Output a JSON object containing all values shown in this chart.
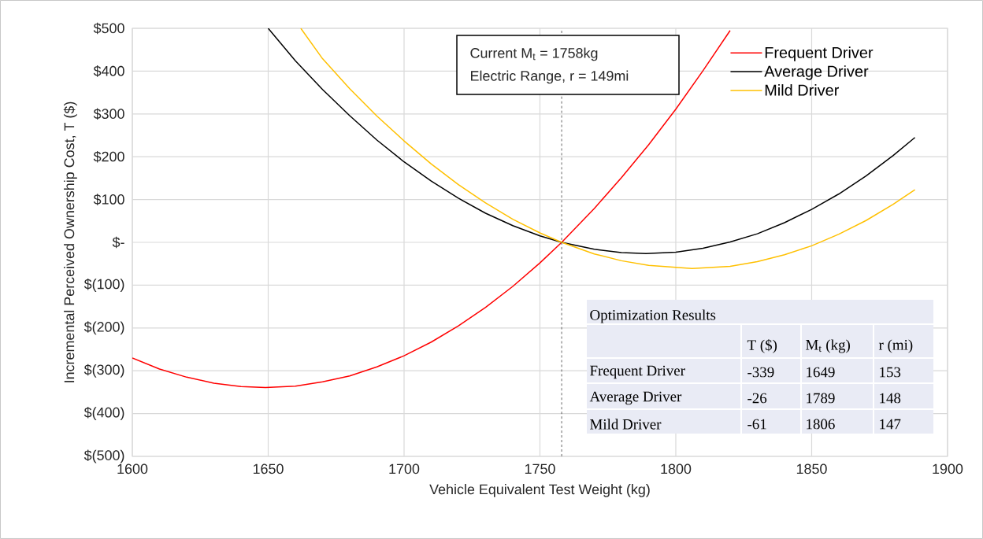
{
  "chart_data": {
    "type": "line",
    "xlabel": "Vehicle Equivalent Test Weight (kg)",
    "ylabel": "Incremental Perceived Ownership Cost, T ($)",
    "xlim": [
      1600,
      1900
    ],
    "xticks": [
      1600,
      1650,
      1700,
      1750,
      1800,
      1850,
      1900
    ],
    "ylim": [
      -500,
      500
    ],
    "yticks": [
      {
        "value": -500,
        "label": "$(500)"
      },
      {
        "value": -400,
        "label": "$(400)"
      },
      {
        "value": -300,
        "label": "$(300)"
      },
      {
        "value": -200,
        "label": "$(200)"
      },
      {
        "value": -100,
        "label": "$(100)"
      },
      {
        "value": 0,
        "label": "$-"
      },
      {
        "value": 100,
        "label": "$100"
      },
      {
        "value": 200,
        "label": "$200"
      },
      {
        "value": 300,
        "label": "$300"
      },
      {
        "value": 400,
        "label": "$400"
      },
      {
        "value": 500,
        "label": "$500"
      }
    ],
    "grid": true,
    "legend": "top right",
    "marker": "none",
    "line_style": "solid",
    "series": [
      {
        "name": "Frequent Driver",
        "color": "#ff0000",
        "x": [
          1600,
          1610,
          1620,
          1630,
          1640,
          1649,
          1660,
          1670,
          1680,
          1690,
          1700,
          1710,
          1720,
          1730,
          1740,
          1750,
          1758,
          1770,
          1780,
          1790,
          1800,
          1810,
          1820
        ],
        "values": [
          -270,
          -296,
          -315,
          -329,
          -337,
          -339,
          -336,
          -326,
          -312,
          -291,
          -265,
          -233,
          -195,
          -152,
          -103,
          -48,
          0,
          79,
          151,
          228,
          311,
          401,
          495
        ]
      },
      {
        "name": "Average Driver",
        "color": "#000000",
        "x": [
          1650,
          1660,
          1670,
          1680,
          1690,
          1700,
          1710,
          1720,
          1730,
          1740,
          1750,
          1758,
          1770,
          1780,
          1789,
          1800,
          1810,
          1820,
          1830,
          1840,
          1850,
          1860,
          1870,
          1880,
          1888
        ],
        "values": [
          500,
          424,
          357,
          296,
          239,
          188,
          143,
          103,
          68,
          39,
          15,
          0,
          -16,
          -24,
          -26,
          -23,
          -14,
          1,
          20,
          46,
          77,
          113,
          155,
          203,
          245
        ]
      },
      {
        "name": "Mild Driver",
        "color": "#ffc000",
        "x": [
          1662,
          1670,
          1680,
          1690,
          1700,
          1710,
          1720,
          1730,
          1740,
          1750,
          1758,
          1770,
          1780,
          1790,
          1806,
          1820,
          1830,
          1840,
          1850,
          1860,
          1870,
          1880,
          1888
        ],
        "values": [
          500,
          429,
          359,
          295,
          237,
          183,
          135,
          92,
          54,
          22,
          0,
          -27,
          -43,
          -54,
          -61,
          -56,
          -45,
          -29,
          -8,
          19,
          51,
          89,
          123
        ]
      }
    ],
    "ref_lines": [
      {
        "axis": "x",
        "value": 1758,
        "color": "#404040",
        "line_style": "dashed"
      }
    ],
    "annotations": [
      "Current M$_{t}$ = 1758kg",
      "Electric Range, r = 149mi",
      "Optimization Results",
      "T ($)",
      "M$_{t}$ (kg)",
      "r (mi)",
      "Frequent Driver",
      "-339",
      "1649",
      "153",
      "Average Driver",
      "-26",
      "1789",
      "148",
      "Mild Driver",
      "-61",
      "1806",
      "147"
    ]
  }
}
